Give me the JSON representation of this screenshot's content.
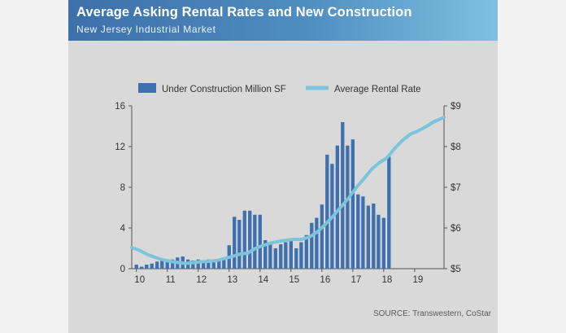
{
  "header": {
    "title": "Average Asking Rental Rates and New Construction",
    "subtitle": "New Jersey Industrial Market"
  },
  "footer": {
    "source": "SOURCE: Transwestern, CoStar"
  },
  "colors": {
    "bar": "#3e6fae",
    "line": "#7cc3dc",
    "header_start": "#3d6fa9",
    "header_end": "#7fc0e0",
    "background": "#d9d9da"
  },
  "chart_data": {
    "type": "bar",
    "title": "Average Asking Rental Rates and New Construction",
    "subtitle": "New Jersey Industrial Market",
    "legend_position": "top",
    "grid": false,
    "x_tick_labels": [
      "10",
      "11",
      "12",
      "13",
      "14",
      "15",
      "16",
      "17",
      "18",
      "19"
    ],
    "y_left": {
      "ylim": [
        0,
        16
      ],
      "ticks": [
        "0",
        "4",
        "8",
        "12",
        "16"
      ]
    },
    "y_right": {
      "ylim": [
        5,
        9
      ],
      "ticks": [
        "$5",
        "$6",
        "$7",
        "$8",
        "$9"
      ]
    },
    "x_range": [
      2009.85,
      2019.95
    ],
    "series": [
      {
        "name": "Under Construction Million SF",
        "type": "bar",
        "axis": "left",
        "x": [
          2010.0,
          2010.17,
          2010.33,
          2010.5,
          2010.67,
          2010.83,
          2011.0,
          2011.17,
          2011.33,
          2011.5,
          2011.67,
          2011.83,
          2012.0,
          2012.17,
          2012.33,
          2012.5,
          2012.67,
          2012.83,
          2013.0,
          2013.17,
          2013.33,
          2013.5,
          2013.67,
          2013.83,
          2014.0,
          2014.17,
          2014.33,
          2014.5,
          2014.67,
          2014.83,
          2015.0,
          2015.17,
          2015.33,
          2015.5,
          2015.67,
          2015.83,
          2016.0,
          2016.17,
          2016.33,
          2016.5,
          2016.67,
          2016.83,
          2017.0,
          2017.17,
          2017.33,
          2017.5,
          2017.67,
          2017.83,
          2018.0,
          2018.17,
          2018.33,
          2018.5,
          2018.67,
          2018.83,
          2019.0,
          2019.17,
          2019.33,
          2019.5,
          2019.67,
          2019.83
        ],
        "values": [
          0.4,
          0.2,
          0.4,
          0.5,
          0.7,
          0.8,
          0.8,
          0.9,
          1.1,
          1.2,
          0.9,
          0.8,
          0.9,
          0.6,
          0.9,
          0.8,
          0.9,
          0.9,
          2.3,
          5.1,
          4.8,
          5.7,
          5.7,
          5.3,
          5.3,
          2.8,
          2.4,
          2.0,
          2.4,
          2.6,
          2.8,
          2.0,
          2.6,
          3.3,
          4.5,
          5.0,
          6.3,
          11.2,
          10.3,
          12.1,
          14.4,
          12.1,
          12.7,
          7.3,
          7.1,
          6.2,
          6.4,
          5.3,
          5.0,
          11.0,
          0,
          0,
          0,
          0,
          0,
          0,
          0,
          0,
          0,
          0
        ]
      },
      {
        "name": "Average Rental Rate",
        "type": "line",
        "axis": "right",
        "x": [
          2009.85,
          2010.1,
          2010.35,
          2010.6,
          2010.85,
          2011.1,
          2011.35,
          2011.6,
          2011.85,
          2012.1,
          2012.35,
          2012.6,
          2012.85,
          2013.1,
          2013.35,
          2013.6,
          2013.85,
          2014.1,
          2014.35,
          2014.6,
          2014.85,
          2015.1,
          2015.35,
          2015.6,
          2015.85,
          2016.1,
          2016.35,
          2016.6,
          2016.85,
          2017.1,
          2017.35,
          2017.6,
          2017.85,
          2018.1,
          2018.35,
          2018.6,
          2018.85,
          2019.1,
          2019.35,
          2019.6,
          2019.95
        ],
        "values": [
          5.52,
          5.45,
          5.35,
          5.28,
          5.22,
          5.18,
          5.15,
          5.13,
          5.15,
          5.17,
          5.18,
          5.2,
          5.25,
          5.3,
          5.36,
          5.38,
          5.5,
          5.57,
          5.63,
          5.67,
          5.7,
          5.72,
          5.72,
          5.78,
          5.9,
          6.08,
          6.28,
          6.5,
          6.72,
          6.98,
          7.2,
          7.44,
          7.6,
          7.72,
          7.95,
          8.15,
          8.3,
          8.38,
          8.48,
          8.6,
          8.72
        ]
      }
    ]
  }
}
